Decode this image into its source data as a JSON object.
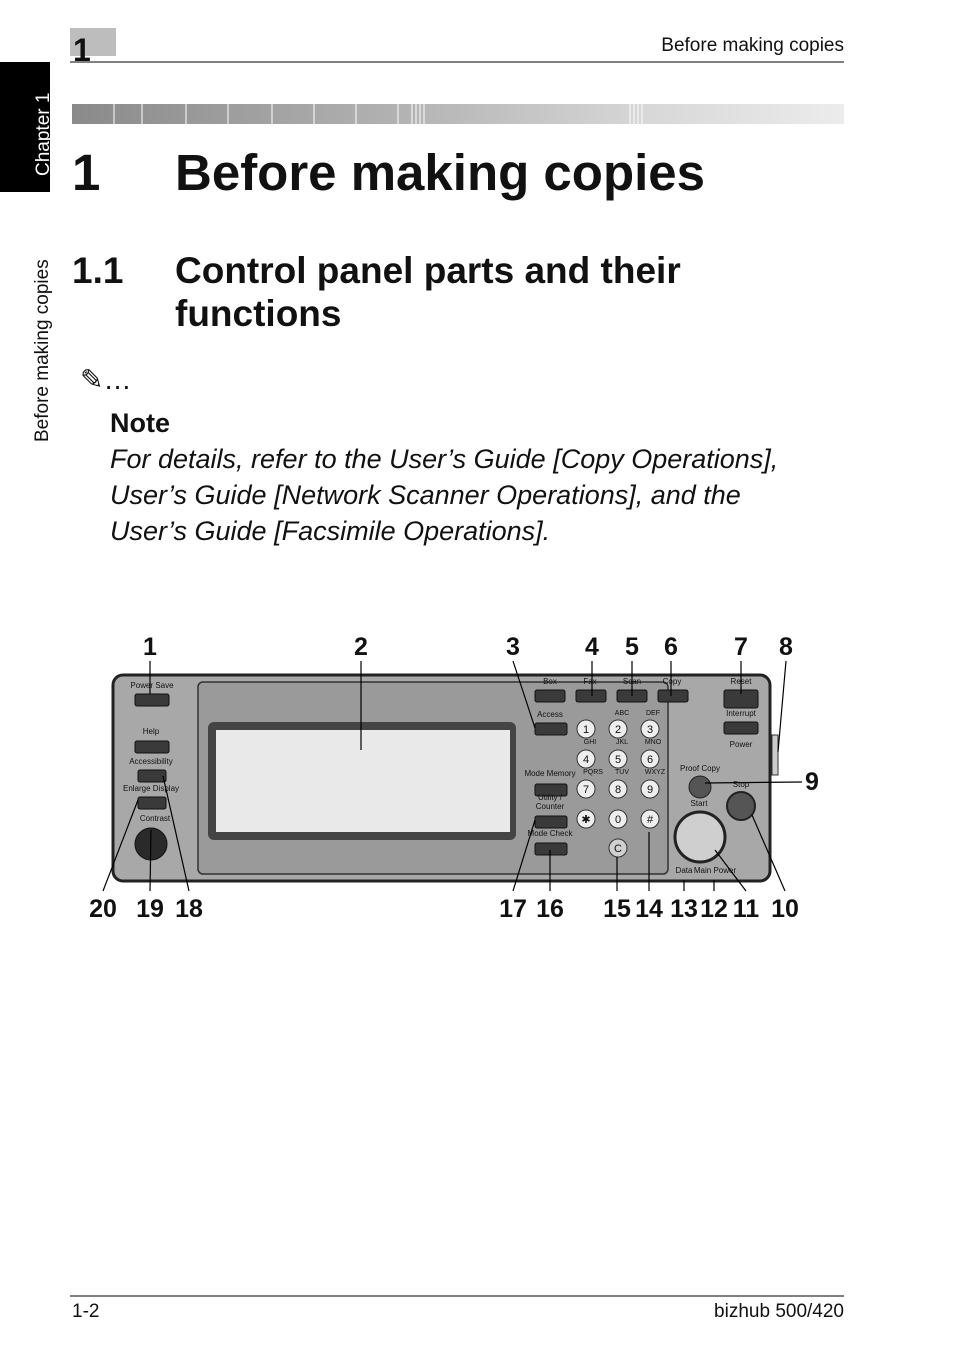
{
  "header": {
    "chapter_number": "1",
    "running_title": "Before making copies"
  },
  "side_tab": {
    "chapter": "Chapter 1",
    "section": "Before making copies"
  },
  "chapter_heading": {
    "number": "1",
    "title": "Before making copies"
  },
  "section_heading": {
    "number": "1.1",
    "title_lines": [
      "Control panel parts and their",
      "functions"
    ]
  },
  "note": {
    "icon": "✎…",
    "label": "Note",
    "text_lines": [
      "For details, refer to the User’s Guide [Copy Operations],",
      "User’s Guide [Network Scanner Operations], and the",
      "User’s Guide [Facsimile Operations]."
    ]
  },
  "figure": {
    "callouts": [
      "1",
      "2",
      "3",
      "4",
      "5",
      "6",
      "7",
      "8",
      "9",
      "20",
      "19",
      "18",
      "17",
      "16",
      "15",
      "14",
      "13",
      "12",
      "11",
      "10"
    ],
    "panel_labels": [
      "Power Save",
      "Help",
      "Accessibility",
      "Enlarge Display",
      "Contrast",
      "Box",
      "Fax",
      "Scan",
      "Copy",
      "Access",
      "Reset",
      "Interrupt",
      "Power",
      "Mode Memory",
      "Utility /",
      "Counter",
      "Mode Check",
      "Proof Copy",
      "Start",
      "Stop",
      "Data",
      "Main Power"
    ],
    "keypad_keys": [
      "1",
      "2",
      "3",
      "4",
      "5",
      "6",
      "7",
      "8",
      "9",
      "✱",
      "0",
      "#",
      "C"
    ],
    "keypad_letters": [
      "ABC",
      "DEF",
      "GHI",
      "JKL",
      "MNO",
      "PQRS",
      "TUV",
      "WXYZ"
    ]
  },
  "footer": {
    "page": "1-2",
    "product": "bizhub 500/420"
  }
}
